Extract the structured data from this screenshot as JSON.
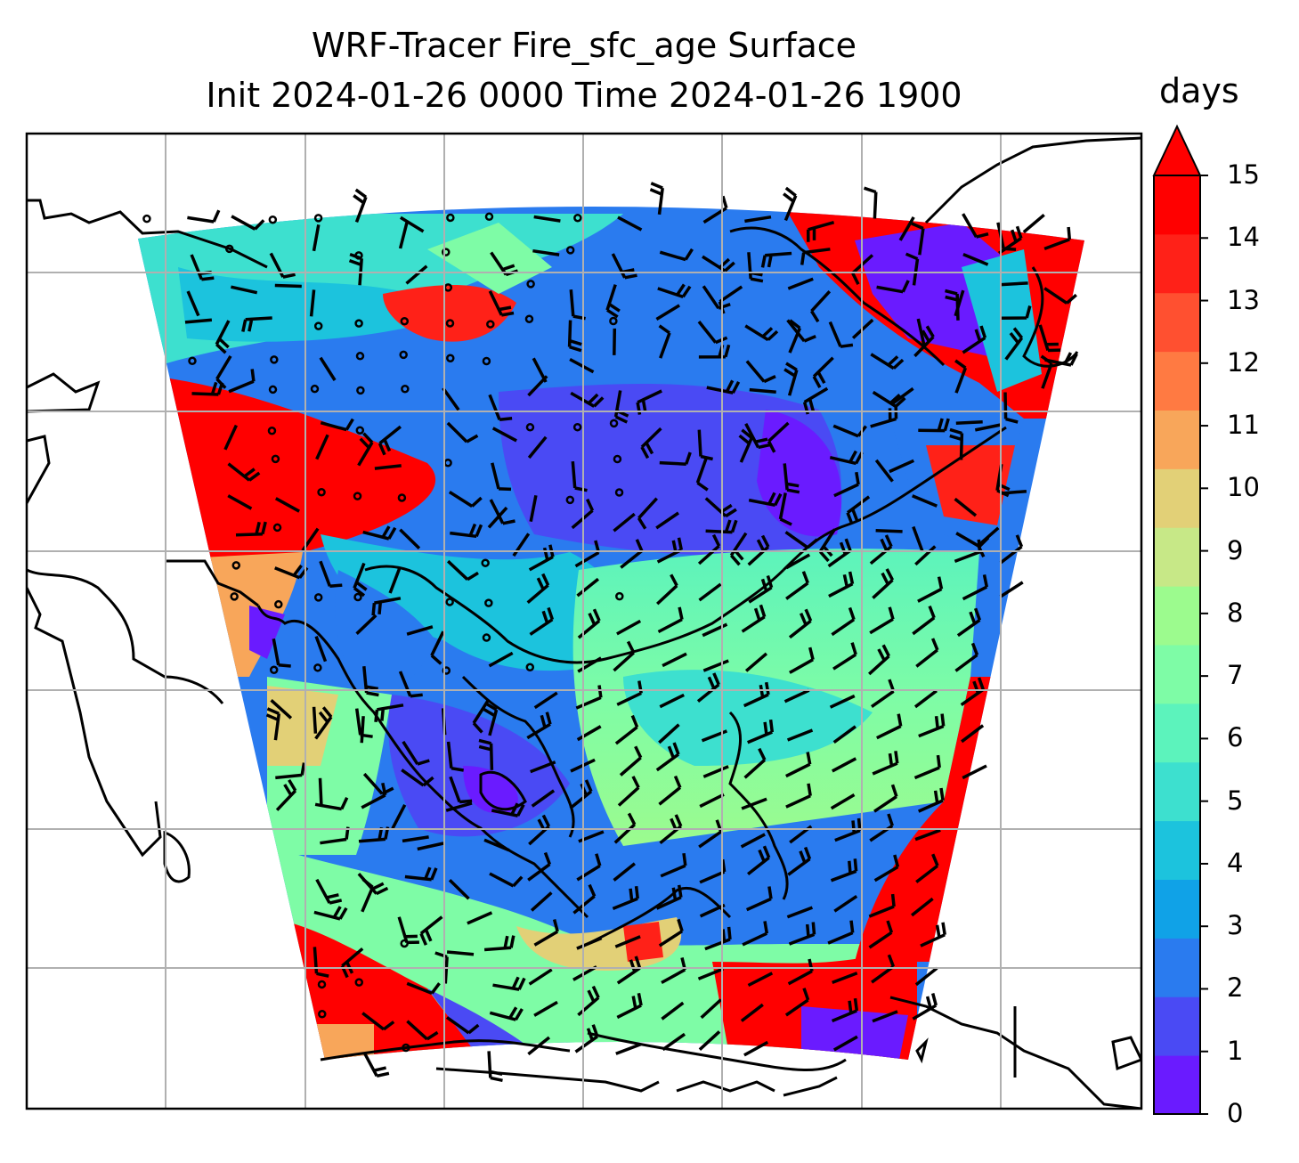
{
  "title_line1": "WRF-Tracer Fire_sfc_age Surface",
  "title_line2": "Init 2024-01-26 0000 Time 2024-01-26 1900",
  "colorbar": {
    "label": "days",
    "ticks": [
      "0",
      "1",
      "2",
      "3",
      "4",
      "5",
      "6",
      "7",
      "8",
      "9",
      "10",
      "11",
      "12",
      "13",
      "14",
      "15"
    ],
    "range": [
      0,
      15
    ],
    "extend": "max",
    "colors": [
      "#6a1bff",
      "#4a4af4",
      "#2a7bef",
      "#10a2e7",
      "#1cc3dd",
      "#3de0cf",
      "#5cf3bc",
      "#7efca6",
      "#9cfb8e",
      "#c7e887",
      "#e2d077",
      "#f8a65a",
      "#ff7a42",
      "#ff5030",
      "#ff2118",
      "#ff0000"
    ]
  },
  "map": {
    "field": "Fire_sfc_age",
    "units": "days",
    "gridlines": true,
    "wind_barbs": true
  }
}
